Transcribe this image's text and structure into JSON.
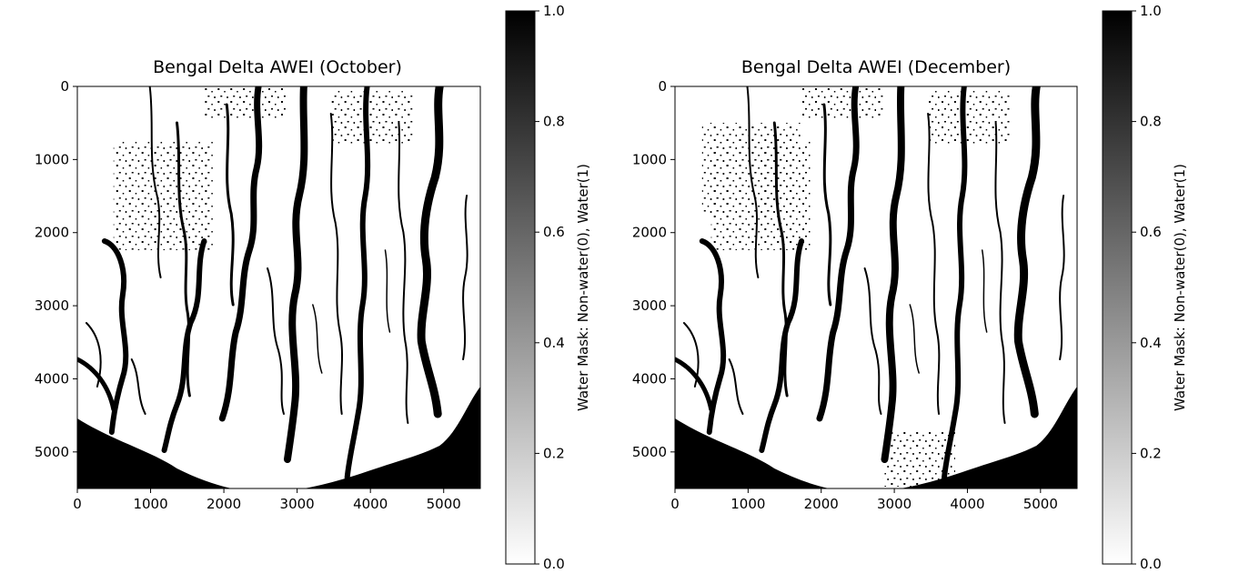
{
  "chart_data": [
    {
      "type": "heatmap",
      "title": "Bengal Delta AWEI (October)",
      "xlabel": "",
      "ylabel": "",
      "xlim": [
        0,
        5500
      ],
      "ylim": [
        5500,
        0
      ],
      "xticks": [
        "0",
        "1000",
        "2000",
        "3000",
        "4000",
        "5000"
      ],
      "yticks": [
        "0",
        "1000",
        "2000",
        "3000",
        "4000",
        "5000"
      ],
      "colormap": "gray_r",
      "colorbar": {
        "label": "Water Mask: Non-water(0), Water(1)",
        "range": [
          0.0,
          1.0
        ],
        "ticks": [
          "0.0",
          "0.2",
          "0.4",
          "0.6",
          "0.8",
          "1.0"
        ]
      }
    },
    {
      "type": "heatmap",
      "title": "Bengal Delta AWEI (December)",
      "xlabel": "",
      "ylabel": "",
      "xlim": [
        0,
        5500
      ],
      "ylim": [
        5500,
        0
      ],
      "xticks": [
        "0",
        "1000",
        "2000",
        "3000",
        "4000",
        "5000"
      ],
      "yticks": [
        "0",
        "1000",
        "2000",
        "3000",
        "4000",
        "5000"
      ],
      "colormap": "gray_r",
      "colorbar": {
        "label": "Water Mask: Non-water(0), Water(1)",
        "range": [
          0.0,
          1.0
        ],
        "ticks": [
          "0.0",
          "0.2",
          "0.4",
          "0.6",
          "0.8",
          "1.0"
        ]
      }
    }
  ]
}
